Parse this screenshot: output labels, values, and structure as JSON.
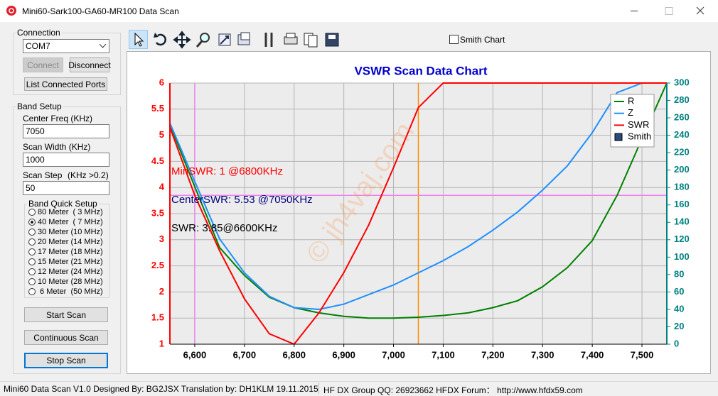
{
  "window": {
    "title": "Mini60-Sark100-GA60-MR100 Data Scan"
  },
  "connection": {
    "title": "Connection",
    "port": "COM7",
    "connect": "Connect",
    "disconnect": "Disconnect",
    "list_ports": "List Connected Ports"
  },
  "band_setup": {
    "title": "Band Setup",
    "center_label": "Center Freq  (KHz)",
    "center_value": "7050",
    "width_label": "Scan Width   (KHz)",
    "width_value": "1000",
    "step_label": "Scan Step",
    "step_note": "(KHz >0.2)",
    "step_value": "50",
    "quick_setup": {
      "title": "Band Quick Setup",
      "options": [
        "80 Meter  ( 3 MHz)",
        "40 Meter  ( 7 MHz)",
        "30 Meter (10 MHz)",
        "20 Meter (14 MHz)",
        "17 Meter (18 MHz)",
        "15 Meter (21 MHz)",
        "12 Meter (24 MHz)",
        "10 Meter (28 MHz)",
        " 6 Meter  (50 MHz)"
      ],
      "selected": 1
    },
    "start": "Start Scan",
    "continuous": "Continuous Scan",
    "stop": "Stop Scan"
  },
  "toolbar": {
    "smith_chart": "Smith Chart"
  },
  "chart_data": {
    "type": "line",
    "title": "VSWR Scan Data Chart",
    "x": [
      6550,
      6600,
      6650,
      6700,
      6750,
      6800,
      6850,
      6900,
      6950,
      7000,
      7050,
      7100,
      7150,
      7200,
      7250,
      7300,
      7350,
      7400,
      7450,
      7500,
      7550
    ],
    "series": [
      {
        "name": "R",
        "color": "#008000",
        "axis": "y2",
        "values": [
          252,
          181,
          111,
          79,
          54,
          42,
          36,
          32,
          30,
          30,
          31,
          33,
          36,
          42,
          50,
          66,
          88,
          119,
          171,
          236,
          300
        ]
      },
      {
        "name": "Z",
        "color": "#1e90ff",
        "axis": "y2",
        "values": [
          254,
          187,
          121,
          82,
          55,
          42,
          40,
          46,
          57,
          68,
          82,
          96,
          112,
          131,
          152,
          177,
          205,
          243,
          289,
          300,
          null
        ]
      },
      {
        "name": "SWR",
        "color": "#ff0000",
        "values": [
          5.15,
          3.85,
          2.79,
          1.87,
          1.2,
          1,
          1.6,
          2.37,
          3.28,
          4.38,
          5.53,
          6,
          6,
          6,
          6,
          6,
          6,
          6,
          6,
          6,
          6
        ]
      }
    ],
    "legend_extra": {
      "name": "Smith",
      "color": "#2a4a7a"
    },
    "xlim": [
      6550,
      7550
    ],
    "xticks": [
      {
        "value": 6600,
        "label": "6,600"
      },
      {
        "value": 6700,
        "label": "6,700"
      },
      {
        "value": 6800,
        "label": "6,800"
      },
      {
        "value": 6900,
        "label": "6,900"
      },
      {
        "value": 7000,
        "label": "7,000"
      },
      {
        "value": 7100,
        "label": "7,100"
      },
      {
        "value": 7200,
        "label": "7,200"
      },
      {
        "value": 7300,
        "label": "7,300"
      },
      {
        "value": 7400,
        "label": "7,400"
      },
      {
        "value": 7500,
        "label": "7,500"
      }
    ],
    "ylim": [
      1,
      6
    ],
    "yticks": [
      1,
      1.5,
      2,
      2.5,
      3,
      3.5,
      4,
      4.5,
      5,
      5.5,
      6
    ],
    "y_color": "#ff0000",
    "y2lim": [
      0,
      300
    ],
    "y2ticks": [
      0,
      20,
      40,
      60,
      80,
      100,
      120,
      140,
      160,
      180,
      200,
      220,
      240,
      260,
      280,
      300
    ],
    "y2_color": "#008080",
    "grid": true,
    "vlines": [
      {
        "x": 6600,
        "color": "#ee82ee"
      },
      {
        "x": 7050,
        "color": "#ff8c00"
      }
    ],
    "hlines": [
      {
        "y": 3.85,
        "color": "#ee82ee"
      }
    ],
    "annotations": [
      {
        "text": "MinSWR: 1 @6800KHz",
        "color": "#ff0000"
      },
      {
        "text": "CenterSWR: 5.53 @7050KHz",
        "color": "#000080"
      },
      {
        "text": "SWR: 3.85@6600KHz",
        "color": "#000000"
      }
    ],
    "watermark": "© jh4vaj.com"
  },
  "status_bar": {
    "left": "Mini60 Data Scan V1.0  Designed By: BG2JSX  Translation by: DH1KLM    19.11.2015",
    "right": "HF DX Group QQ: 26923662  HFDX Forum：  http://www.hfdx59.com"
  }
}
